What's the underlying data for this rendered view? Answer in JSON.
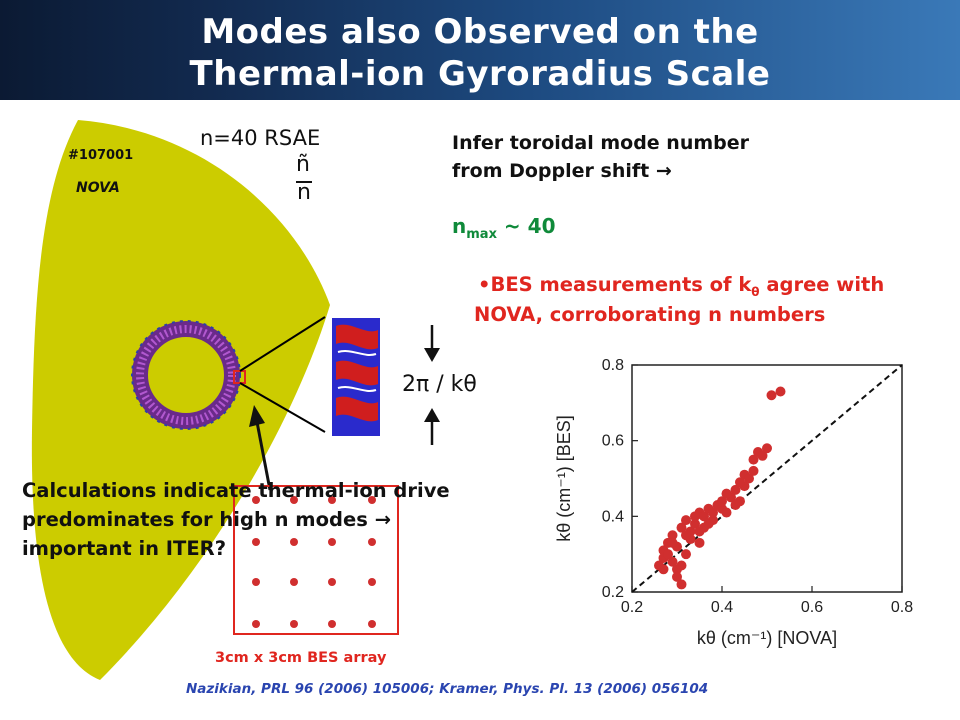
{
  "title": {
    "line1": "Modes also Observed on the",
    "line2": "Thermal-ion Gyroradius Scale"
  },
  "nova_panel": {
    "shot": "#107001",
    "code": "NOVA",
    "mode": "n=40 RSAE",
    "quantity": "ñ",
    "quantity_den": "n",
    "wavelength_label": "2π / kθ"
  },
  "infer": {
    "line1": "Infer toroidal mode number",
    "line2": "from Doppler shift →",
    "nmax_base": "n",
    "nmax_sub": "max",
    "nmax_value": " ~ 40"
  },
  "bes": {
    "line1": "•BES measurements of k",
    "theta": "θ",
    "line1_end": " agree with",
    "line2": "NOVA, corroborating n numbers",
    "array_label": "3cm x 3cm BES array"
  },
  "calc": {
    "line1": "Calculations indicate thermal-ion drive",
    "line2": "predominates for high n modes →",
    "line3": "important in ITER?"
  },
  "citation": "Nazikian, PRL 96 (2006) 105006; Kramer, Phys. Pl. 13 (2006) 056104",
  "colors": {
    "plasma": "#cccc00",
    "data_red": "#d02f2f",
    "green": "#0f8a3a",
    "red_text": "#e0261f",
    "citation_blue": "#2a45b0"
  },
  "chart_data": {
    "type": "scatter",
    "xlabel": "kθ (cm⁻¹) [NOVA]",
    "ylabel": "kθ (cm⁻¹) [BES]",
    "xlim": [
      0.2,
      0.8
    ],
    "ylim": [
      0.2,
      0.8
    ],
    "xticks": [
      "0.2",
      "0.4",
      "0.6",
      "0.8"
    ],
    "yticks": [
      "0.2",
      "0.4",
      "0.6",
      "0.8"
    ],
    "reference_line": "y = x (dashed)",
    "points": [
      [
        0.26,
        0.27
      ],
      [
        0.27,
        0.29
      ],
      [
        0.27,
        0.31
      ],
      [
        0.28,
        0.33
      ],
      [
        0.28,
        0.3
      ],
      [
        0.29,
        0.35
      ],
      [
        0.29,
        0.28
      ],
      [
        0.3,
        0.32
      ],
      [
        0.3,
        0.26
      ],
      [
        0.3,
        0.24
      ],
      [
        0.31,
        0.27
      ],
      [
        0.31,
        0.37
      ],
      [
        0.31,
        0.22
      ],
      [
        0.32,
        0.3
      ],
      [
        0.32,
        0.39
      ],
      [
        0.33,
        0.34
      ],
      [
        0.33,
        0.36
      ],
      [
        0.34,
        0.38
      ],
      [
        0.34,
        0.4
      ],
      [
        0.35,
        0.33
      ],
      [
        0.35,
        0.41
      ],
      [
        0.36,
        0.37
      ],
      [
        0.36,
        0.4
      ],
      [
        0.37,
        0.42
      ],
      [
        0.38,
        0.39
      ],
      [
        0.38,
        0.41
      ],
      [
        0.39,
        0.43
      ],
      [
        0.4,
        0.42
      ],
      [
        0.4,
        0.44
      ],
      [
        0.41,
        0.41
      ],
      [
        0.42,
        0.45
      ],
      [
        0.43,
        0.43
      ],
      [
        0.43,
        0.47
      ],
      [
        0.44,
        0.44
      ],
      [
        0.45,
        0.48
      ],
      [
        0.45,
        0.51
      ],
      [
        0.46,
        0.5
      ],
      [
        0.47,
        0.52
      ],
      [
        0.47,
        0.55
      ],
      [
        0.48,
        0.57
      ],
      [
        0.49,
        0.56
      ],
      [
        0.5,
        0.58
      ],
      [
        0.51,
        0.72
      ],
      [
        0.53,
        0.73
      ],
      [
        0.27,
        0.26
      ],
      [
        0.29,
        0.33
      ],
      [
        0.32,
        0.35
      ],
      [
        0.35,
        0.36
      ],
      [
        0.37,
        0.38
      ],
      [
        0.41,
        0.46
      ],
      [
        0.44,
        0.49
      ]
    ]
  }
}
